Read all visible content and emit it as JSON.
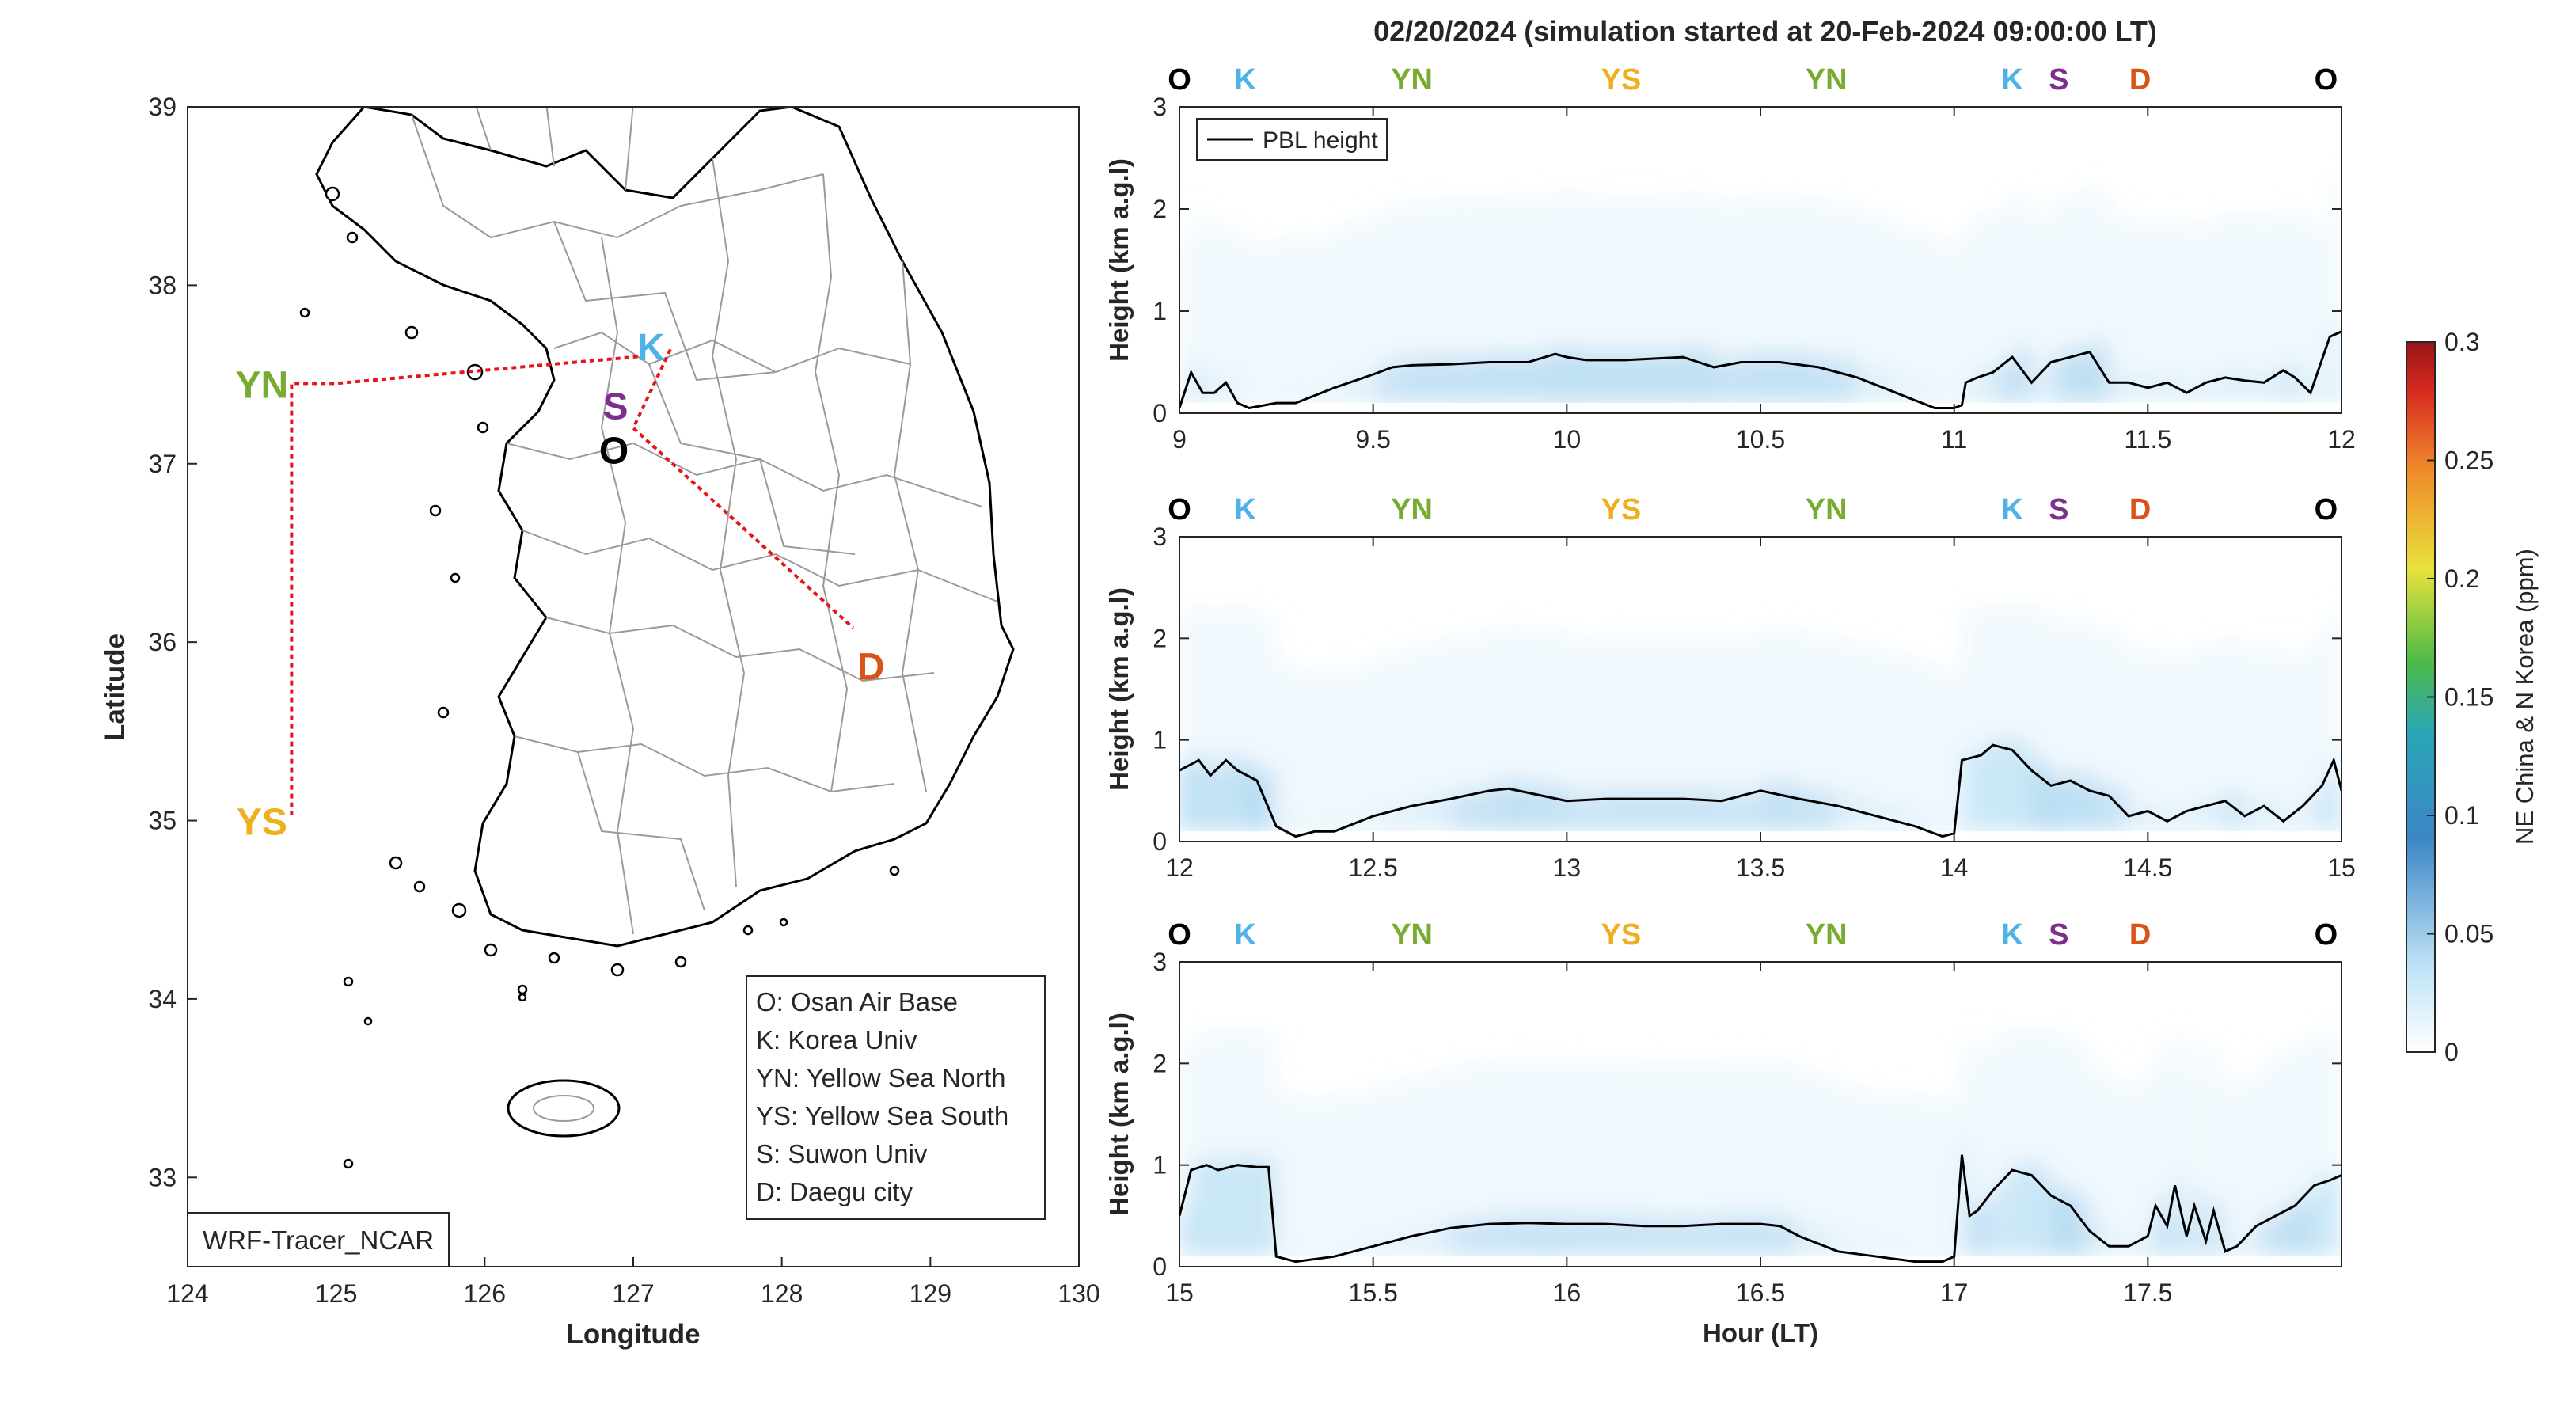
{
  "figure": {
    "title": "02/20/2024 (simulation started at 20-Feb-2024 09:00:00 LT)"
  },
  "colors": {
    "O": "#000000",
    "K": "#4db3e6",
    "YN": "#77ac30",
    "YS": "#edb120",
    "S": "#7e2f8e",
    "D": "#d95319",
    "route": "#e8141c",
    "pbl": "#000000"
  },
  "map": {
    "xlabel": "Longitude",
    "ylabel": "Latitude",
    "xlim": [
      124,
      130
    ],
    "ylim": [
      32.5,
      39
    ],
    "xticks": [
      "124",
      "125",
      "126",
      "127",
      "128",
      "129",
      "130"
    ],
    "yticks": [
      "33",
      "34",
      "35",
      "36",
      "37",
      "38",
      "39"
    ],
    "watermark": "WRF-Tracer_NCAR",
    "sites": [
      {
        "code": "YN",
        "lon": 124.5,
        "lat": 37.45
      },
      {
        "code": "YS",
        "lon": 124.5,
        "lat": 35.0
      },
      {
        "code": "K",
        "lon": 127.12,
        "lat": 37.66
      },
      {
        "code": "S",
        "lon": 126.88,
        "lat": 37.33
      },
      {
        "code": "O",
        "lon": 126.87,
        "lat": 37.08
      },
      {
        "code": "D",
        "lon": 128.6,
        "lat": 35.87
      }
    ],
    "route": [
      [
        127.03,
        37.6
      ],
      [
        125.0,
        37.45
      ],
      [
        124.7,
        37.45
      ],
      [
        124.7,
        35.03
      ]
    ],
    "route2": [
      [
        127.25,
        37.64
      ],
      [
        127.0,
        37.2
      ],
      [
        128.48,
        36.08
      ]
    ],
    "legend": [
      "O: Osan Air Base",
      "K: Korea Univ",
      "YN: Yellow Sea North",
      "YS: Yellow Sea South",
      "S: Suwon Univ",
      "D: Daegu city"
    ]
  },
  "colorbar": {
    "label": "NE China & N Korea (ppm)",
    "ticks": [
      "0",
      "0.05",
      "0.1",
      "0.15",
      "0.2",
      "0.25",
      "0.3"
    ],
    "range": [
      0,
      0.3
    ]
  },
  "chart_data": [
    {
      "type": "line",
      "name": "panel-1",
      "xlim": [
        9,
        12
      ],
      "ylim": [
        0,
        3
      ],
      "xticks": [
        "9",
        "9.5",
        "10",
        "10.5",
        "11",
        "11.5",
        "12"
      ],
      "yticks": [
        "0",
        "1",
        "2",
        "3"
      ],
      "xlabel": "",
      "ylabel": "Height (km a.g.l)",
      "legend": "PBL height",
      "sites_top": [
        {
          "code": "O",
          "x": 9.0
        },
        {
          "code": "K",
          "x": 9.17
        },
        {
          "code": "YN",
          "x": 9.6
        },
        {
          "code": "YS",
          "x": 10.14
        },
        {
          "code": "YN",
          "x": 10.67
        },
        {
          "code": "K",
          "x": 11.15
        },
        {
          "code": "S",
          "x": 11.27
        },
        {
          "code": "D",
          "x": 11.48
        },
        {
          "code": "O",
          "x": 11.96
        }
      ],
      "x": [
        9.0,
        9.03,
        9.06,
        9.09,
        9.12,
        9.15,
        9.18,
        9.25,
        9.3,
        9.4,
        9.5,
        9.55,
        9.6,
        9.7,
        9.8,
        9.9,
        9.97,
        10.0,
        10.05,
        10.15,
        10.3,
        10.38,
        10.45,
        10.55,
        10.65,
        10.75,
        10.85,
        10.95,
        11.0,
        11.02,
        11.03,
        11.06,
        11.1,
        11.15,
        11.2,
        11.25,
        11.3,
        11.35,
        11.4,
        11.45,
        11.5,
        11.55,
        11.6,
        11.65,
        11.7,
        11.75,
        11.8,
        11.85,
        11.88,
        11.92,
        11.97,
        12.0
      ],
      "y": [
        0.05,
        0.4,
        0.2,
        0.2,
        0.3,
        0.1,
        0.05,
        0.1,
        0.1,
        0.25,
        0.38,
        0.45,
        0.47,
        0.48,
        0.5,
        0.5,
        0.58,
        0.55,
        0.52,
        0.52,
        0.55,
        0.45,
        0.5,
        0.5,
        0.45,
        0.35,
        0.2,
        0.05,
        0.05,
        0.08,
        0.3,
        0.35,
        0.4,
        0.55,
        0.3,
        0.5,
        0.55,
        0.6,
        0.3,
        0.3,
        0.25,
        0.3,
        0.2,
        0.3,
        0.35,
        0.32,
        0.3,
        0.42,
        0.35,
        0.2,
        0.75,
        0.8
      ]
    },
    {
      "type": "line",
      "name": "panel-2",
      "xlim": [
        12,
        15
      ],
      "ylim": [
        0,
        3
      ],
      "xticks": [
        "12",
        "12.5",
        "13",
        "13.5",
        "14",
        "14.5",
        "15"
      ],
      "yticks": [
        "0",
        "1",
        "2",
        "3"
      ],
      "xlabel": "",
      "ylabel": "Height (km a.g.l)",
      "sites_top": [
        {
          "code": "O",
          "x": 12.0
        },
        {
          "code": "K",
          "x": 12.17
        },
        {
          "code": "YN",
          "x": 12.6
        },
        {
          "code": "YS",
          "x": 13.14
        },
        {
          "code": "YN",
          "x": 13.67
        },
        {
          "code": "K",
          "x": 14.15
        },
        {
          "code": "S",
          "x": 14.27
        },
        {
          "code": "D",
          "x": 14.48
        },
        {
          "code": "O",
          "x": 14.96
        }
      ],
      "x": [
        12.0,
        12.05,
        12.08,
        12.12,
        12.15,
        12.2,
        12.25,
        12.3,
        12.35,
        12.4,
        12.5,
        12.6,
        12.7,
        12.8,
        12.85,
        12.9,
        13.0,
        13.1,
        13.2,
        13.3,
        13.4,
        13.5,
        13.6,
        13.7,
        13.8,
        13.9,
        13.97,
        14.0,
        14.02,
        14.07,
        14.1,
        14.15,
        14.2,
        14.25,
        14.3,
        14.35,
        14.4,
        14.45,
        14.5,
        14.55,
        14.6,
        14.65,
        14.7,
        14.75,
        14.8,
        14.85,
        14.9,
        14.95,
        14.98,
        15.0
      ],
      "y": [
        0.7,
        0.8,
        0.65,
        0.8,
        0.7,
        0.6,
        0.15,
        0.05,
        0.1,
        0.1,
        0.25,
        0.35,
        0.42,
        0.5,
        0.52,
        0.48,
        0.4,
        0.42,
        0.42,
        0.42,
        0.4,
        0.5,
        0.42,
        0.35,
        0.25,
        0.15,
        0.05,
        0.08,
        0.8,
        0.85,
        0.95,
        0.9,
        0.7,
        0.55,
        0.6,
        0.5,
        0.45,
        0.25,
        0.3,
        0.2,
        0.3,
        0.35,
        0.4,
        0.25,
        0.35,
        0.2,
        0.35,
        0.55,
        0.8,
        0.5
      ]
    },
    {
      "type": "line",
      "name": "panel-3",
      "xlim": [
        15,
        18
      ],
      "ylim": [
        0,
        3
      ],
      "xticks": [
        "15",
        "15.5",
        "16",
        "16.5",
        "17",
        "17.5"
      ],
      "yticks": [
        "0",
        "1",
        "2",
        "3"
      ],
      "xlabel": "Hour (LT)",
      "ylabel": "Height (km a.g.l)",
      "sites_top": [
        {
          "code": "O",
          "x": 15.0
        },
        {
          "code": "K",
          "x": 15.17
        },
        {
          "code": "YN",
          "x": 15.6
        },
        {
          "code": "YS",
          "x": 16.14
        },
        {
          "code": "YN",
          "x": 16.67
        },
        {
          "code": "K",
          "x": 17.15
        },
        {
          "code": "S",
          "x": 17.27
        },
        {
          "code": "D",
          "x": 17.48
        },
        {
          "code": "O",
          "x": 17.96
        }
      ],
      "x": [
        15.0,
        15.03,
        15.07,
        15.1,
        15.15,
        15.2,
        15.23,
        15.25,
        15.3,
        15.4,
        15.5,
        15.6,
        15.7,
        15.8,
        15.9,
        16.0,
        16.1,
        16.2,
        16.3,
        16.4,
        16.5,
        16.55,
        16.6,
        16.7,
        16.8,
        16.9,
        16.97,
        17.0,
        17.02,
        17.04,
        17.06,
        17.1,
        17.15,
        17.2,
        17.25,
        17.3,
        17.35,
        17.4,
        17.45,
        17.5,
        17.52,
        17.55,
        17.57,
        17.6,
        17.62,
        17.65,
        17.67,
        17.7,
        17.73,
        17.78,
        17.83,
        17.88,
        17.93,
        17.97,
        18.0
      ],
      "y": [
        0.5,
        0.95,
        1.0,
        0.95,
        1.0,
        0.98,
        0.98,
        0.1,
        0.05,
        0.1,
        0.2,
        0.3,
        0.38,
        0.42,
        0.43,
        0.42,
        0.42,
        0.4,
        0.4,
        0.42,
        0.42,
        0.4,
        0.3,
        0.15,
        0.1,
        0.05,
        0.05,
        0.1,
        1.1,
        0.5,
        0.55,
        0.75,
        0.95,
        0.9,
        0.7,
        0.6,
        0.35,
        0.2,
        0.2,
        0.3,
        0.6,
        0.4,
        0.8,
        0.3,
        0.6,
        0.25,
        0.55,
        0.15,
        0.2,
        0.4,
        0.5,
        0.6,
        0.8,
        0.85,
        0.9
      ]
    }
  ]
}
